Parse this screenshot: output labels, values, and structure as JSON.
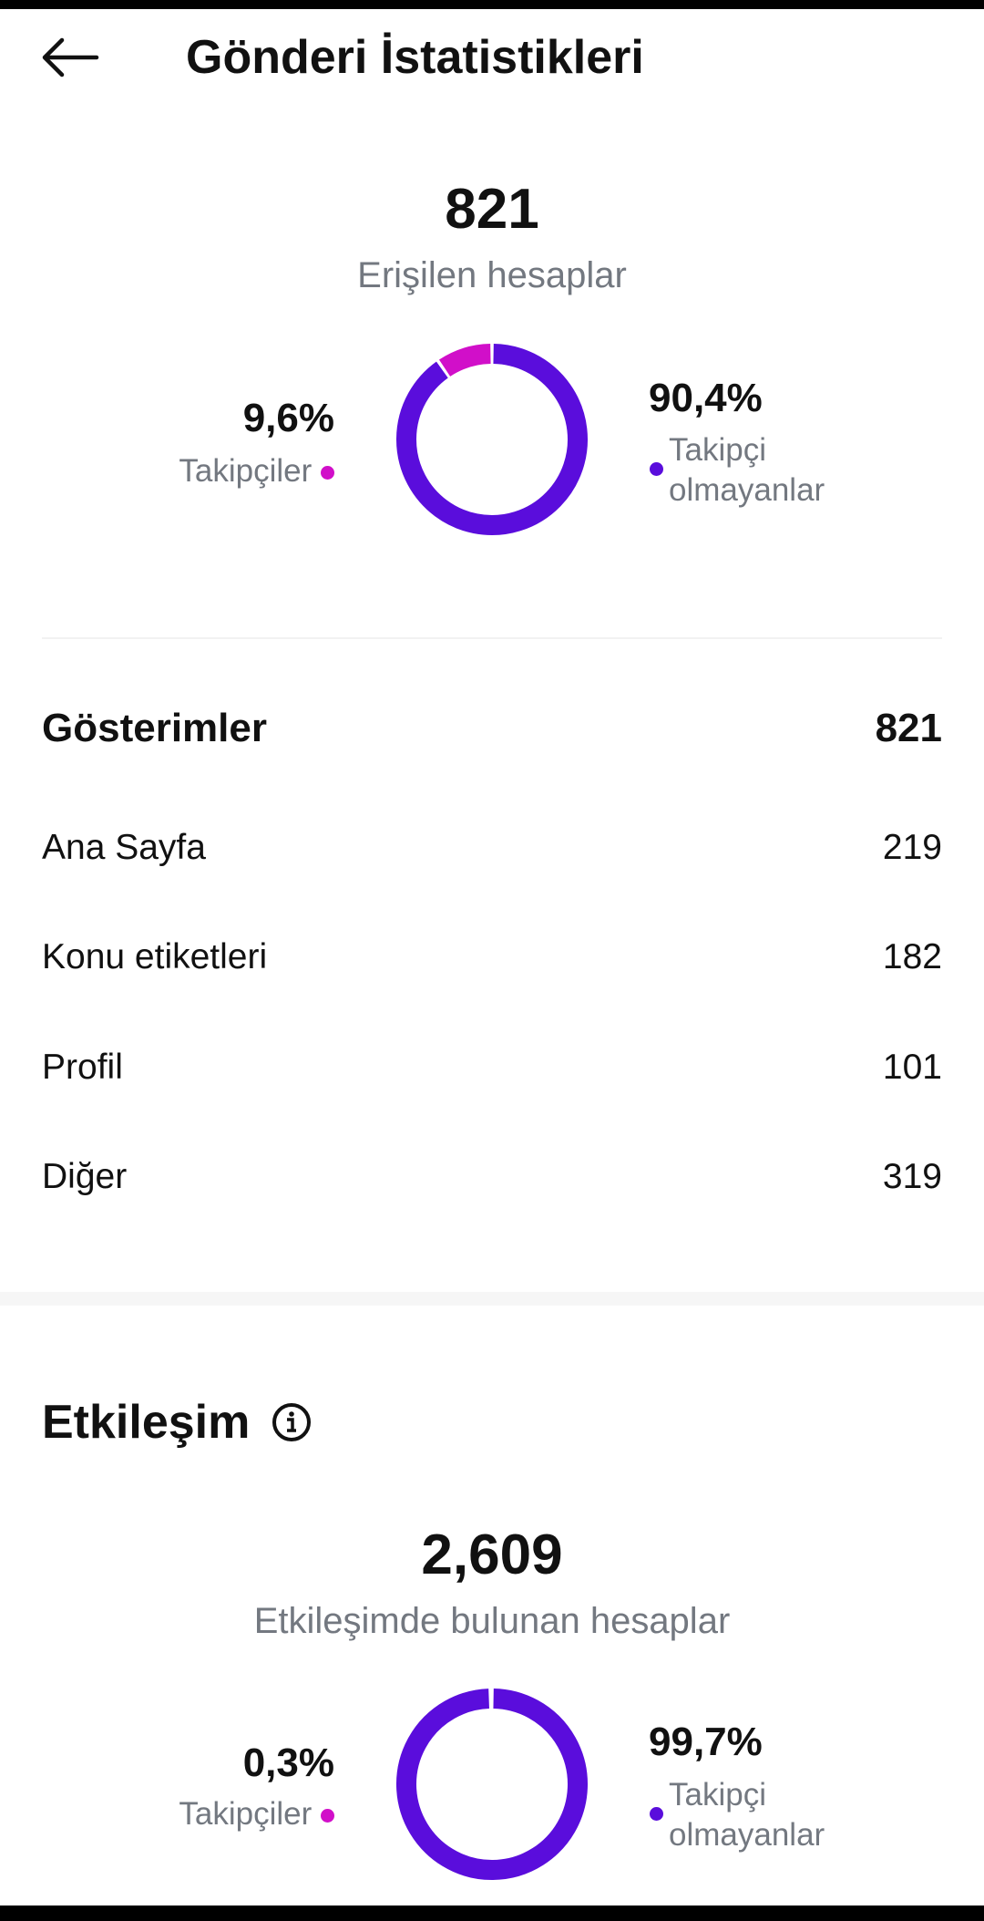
{
  "header": {
    "title": "Gönderi İstatistikleri",
    "back_icon": "arrow-left-icon"
  },
  "reach": {
    "value": "821",
    "label": "Erişilen hesaplar",
    "followers": {
      "percent": "9,6%",
      "label": "Takipçiler",
      "value": 9.6
    },
    "non_followers": {
      "percent": "90,4%",
      "label_line1": "Takipçi",
      "label_line2": "olmayanlar",
      "value": 90.4
    }
  },
  "impressions": {
    "title": "Gösterimler",
    "total": "821",
    "rows": [
      {
        "label": "Ana Sayfa",
        "value": "219"
      },
      {
        "label": "Konu etiketleri",
        "value": "182"
      },
      {
        "label": "Profil",
        "value": "101"
      },
      {
        "label": "Diğer",
        "value": "319"
      }
    ]
  },
  "engagement": {
    "title": "Etkileşim",
    "info_icon": "info-circle-icon",
    "value": "2,609",
    "label": "Etkileşimde bulunan hesaplar",
    "followers": {
      "percent": "0,3%",
      "label": "Takipçiler",
      "value": 0.3
    },
    "non_followers": {
      "percent": "99,7%",
      "label_line1": "Takipçi",
      "label_line2": "olmayanlar",
      "value": 99.7
    }
  },
  "colors": {
    "followers": "#d10fc9",
    "non_followers": "#5a0ddc"
  }
}
